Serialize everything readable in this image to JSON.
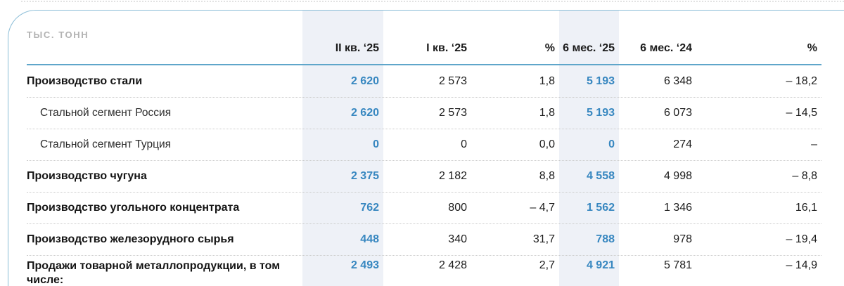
{
  "unit_label": "ТЫС. ТОНН",
  "accent": {
    "highlight_bg": "#eef1f7",
    "highlight_text": "#3787c0",
    "border_blue": "#8abdd7",
    "header_rule_blue": "#5fa6ca"
  },
  "columns": [
    {
      "label": "II кв. ‘25",
      "highlighted": true
    },
    {
      "label": "I кв. ‘25",
      "highlighted": false
    },
    {
      "label": "%",
      "highlighted": false
    },
    {
      "label": "6 мес. ‘25",
      "highlighted": true
    },
    {
      "label": "6 мес. ‘24",
      "highlighted": false
    },
    {
      "label": "%",
      "highlighted": false
    }
  ],
  "rows": [
    {
      "label": "Производство стали",
      "bold": true,
      "indent": false,
      "values": [
        "2 620",
        "2 573",
        "1,8",
        "5 193",
        "6 348",
        "– 18,2"
      ]
    },
    {
      "label": "Стальной сегмент Россия",
      "bold": false,
      "indent": true,
      "values": [
        "2 620",
        "2 573",
        "1,8",
        "5 193",
        "6 073",
        "– 14,5"
      ]
    },
    {
      "label": "Стальной сегмент Турция",
      "bold": false,
      "indent": true,
      "values": [
        "0",
        "0",
        "0,0",
        "0",
        "274",
        "–"
      ]
    },
    {
      "label": "Производство чугуна",
      "bold": true,
      "indent": false,
      "values": [
        "2 375",
        "2 182",
        "8,8",
        "4 558",
        "4 998",
        "– 8,8"
      ]
    },
    {
      "label": "Производство угольного концентрата",
      "bold": true,
      "indent": false,
      "values": [
        "762",
        "800",
        "– 4,7",
        "1 562",
        "1 346",
        "16,1"
      ]
    },
    {
      "label": "Производство железорудного сырья",
      "bold": true,
      "indent": false,
      "values": [
        "448",
        "340",
        "31,7",
        "788",
        "978",
        "– 19,4"
      ]
    },
    {
      "label": "Продажи товарной металлопродукции, в том числе:",
      "bold": true,
      "indent": false,
      "values": [
        "2 493",
        "2 428",
        "2,7",
        "4 921",
        "5 781",
        "– 14,9"
      ]
    }
  ]
}
